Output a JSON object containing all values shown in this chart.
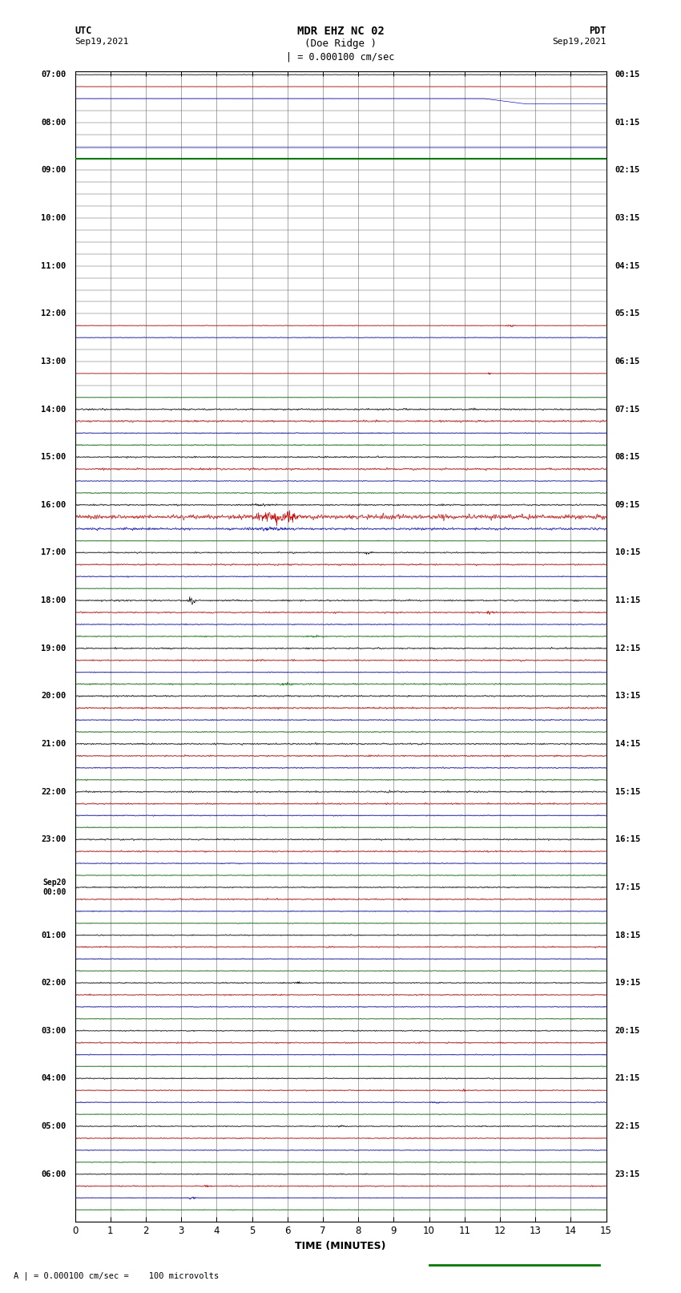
{
  "title_line1": "MDR EHZ NC 02",
  "title_line2": "(Doe Ridge )",
  "scale_label": "| = 0.000100 cm/sec",
  "label_utc": "UTC",
  "label_pdt": "PDT",
  "date_left": "Sep19,2021",
  "date_right": "Sep19,2021",
  "xlabel": "TIME (MINUTES)",
  "footer_label": "A | = 0.000100 cm/sec =    100 microvolts",
  "x_min": 0,
  "x_max": 15,
  "colors": {
    "black": "#000000",
    "red": "#cc0000",
    "blue": "#0000bb",
    "green": "#007700",
    "bg": "#ffffff",
    "grid": "#888888"
  }
}
